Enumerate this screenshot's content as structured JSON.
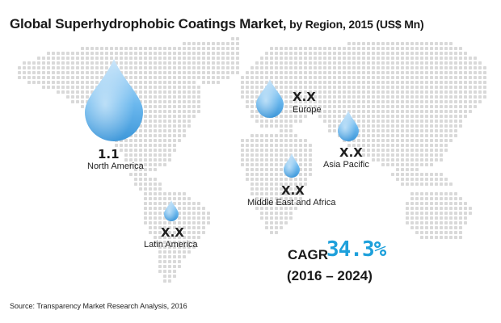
{
  "title_main": "Global Superhydrophobic Coatings Market,",
  "title_sub": " by Region, 2015 (US$ Mn)",
  "chart_data": {
    "type": "map",
    "title": "Global Superhydrophobic Coatings Market, by Region, 2015 (US$ Mn)",
    "regions": [
      {
        "name": "North America",
        "value": 1.1,
        "label": "1.1"
      },
      {
        "name": "Europe",
        "value": null,
        "label": "X.X"
      },
      {
        "name": "Asia Pacific",
        "value": null,
        "label": "X.X"
      },
      {
        "name": "Middle East and Africa",
        "value": null,
        "label": "X.X"
      },
      {
        "name": "Latin America",
        "value": null,
        "label": "X.X"
      }
    ],
    "marker": "water-drop",
    "marker_color": "#5aaee6"
  },
  "cagr": {
    "label": "CAGR",
    "value": "34.3%",
    "period": "(2016 – 2024)",
    "color": "#1ea0db"
  },
  "source": "Source: Transparency Market Research Analysis, 2016",
  "map_dot_color": "#d9d9d9"
}
